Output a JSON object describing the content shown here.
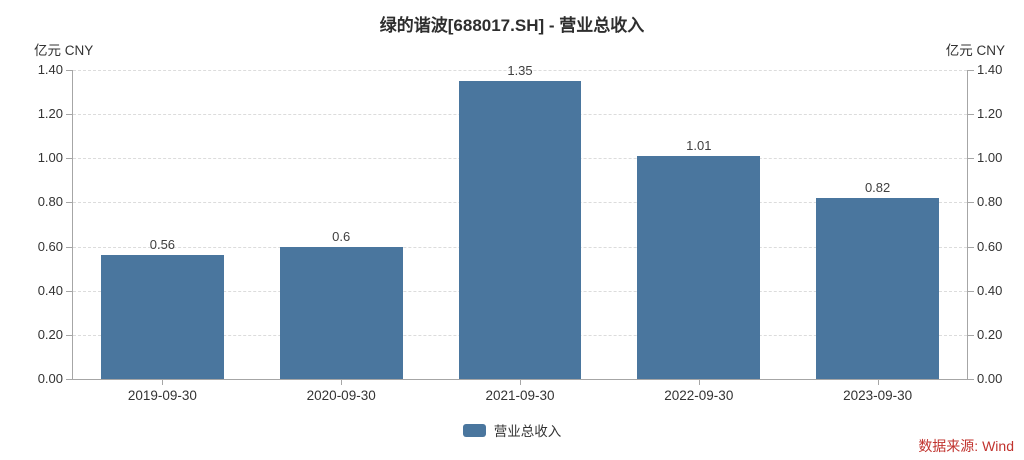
{
  "chart_data": {
    "type": "bar",
    "title": "绿的谐波[688017.SH] - 营业总收入",
    "categories": [
      "2019-09-30",
      "2020-09-30",
      "2021-09-30",
      "2022-09-30",
      "2023-09-30"
    ],
    "values": [
      0.56,
      0.6,
      1.35,
      1.01,
      0.82
    ],
    "value_labels": [
      "0.56",
      "0.6",
      "1.35",
      "1.01",
      "0.82"
    ],
    "series_name": "营业总收入",
    "ylabel_left": "亿元  CNY",
    "ylabel_right": "亿元  CNY",
    "ylim": [
      0,
      1.4
    ],
    "yticks": [
      0,
      0.2,
      0.4,
      0.6,
      0.8,
      1.0,
      1.2,
      1.4
    ],
    "ytick_labels": [
      "0.00",
      "0.20",
      "0.40",
      "0.60",
      "0.80",
      "1.00",
      "1.20",
      "1.40"
    ],
    "grid": true,
    "grid_style": "dashed",
    "legend_position": "bottom-center",
    "bar_color": "#4a769e"
  },
  "legend": {
    "label": "营业总收入"
  },
  "source": {
    "text": "数据来源: Wind"
  },
  "colors": {
    "bar": "#4a769e",
    "grid": "#dcdcdc",
    "axis": "#a6a6a6",
    "text": "#333333",
    "title": "#2e2e2e",
    "value": "#404040",
    "source": "#c1332e"
  }
}
